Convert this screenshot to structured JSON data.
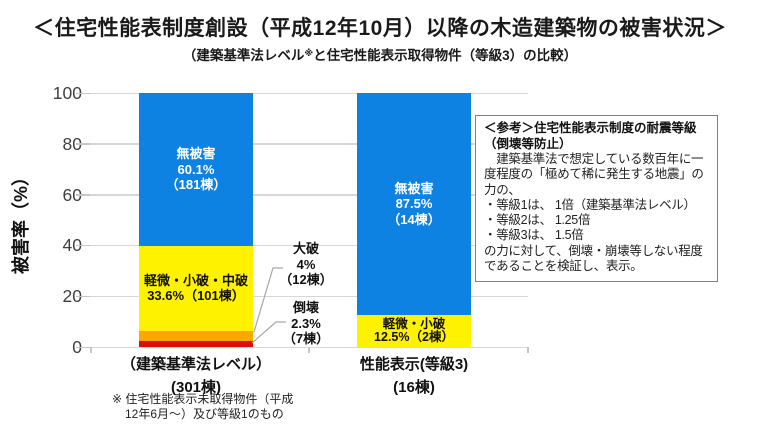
{
  "title": "＜住宅性能表制度創設（平成12年10月）以降の木造建築物の被害状況＞",
  "subtitle": {
    "pre": "（建築基準法レベル",
    "sup": "※",
    "post": "と住宅性能表示取得物件（等級3）の比較）"
  },
  "footnote": {
    "line1": "※ 住宅性能表示未取得物件（平成",
    "line2": "12年6月～）及び等級1のもの"
  },
  "reference_box": {
    "title_line1": "＜参考＞住宅性能表示制度の耐震等級",
    "title_line2": "（倒壊等防止）",
    "body": "　建築基準法で想定している数百年に一度程度の「極めて稀に発生する地震」の力の、\n・等級1は、 1倍（建築基準法レベル）\n・等級2は、 1.25倍\n・等級3は、 1.5倍\nの力に対して、倒壊・崩壊等しない程度であることを検証し、表示。"
  },
  "chart_data": {
    "type": "bar",
    "stacked": true,
    "ylabel": "被害率（%）",
    "ylim": [
      0,
      100
    ],
    "yticks": [
      0,
      20,
      40,
      60,
      80,
      100
    ],
    "grid": true,
    "legend": "none",
    "colors": {
      "no_damage": "#0d82e3",
      "minor": "#fff200",
      "major": "#ffa600",
      "collapse": "#e00c0c",
      "gridline": "#d7d7d7"
    },
    "note": "segments listed top to bottom",
    "bars": [
      {
        "category": "（建築基準法レベル）",
        "category_sub": "(301棟)",
        "total_count": 301,
        "segments": [
          {
            "name": "無被害",
            "pct": 60.1,
            "count": 181,
            "label_lines": [
              "無被害",
              "60.1%",
              "（181棟）"
            ],
            "color_key": "no_damage"
          },
          {
            "name": "軽微・小破・中破",
            "pct": 33.6,
            "count": 101,
            "label_lines": [
              "軽微・小破・中破",
              "33.6%（101棟）"
            ],
            "color_key": "minor"
          },
          {
            "name": "大破",
            "pct": 4,
            "count": 12,
            "label_lines": [
              "大破",
              "4%",
              "（12棟）"
            ],
            "color_key": "major"
          },
          {
            "name": "倒壊",
            "pct": 2.3,
            "count": 7,
            "label_lines": [
              "倒壊",
              "2.3%",
              "（7棟）"
            ],
            "color_key": "collapse"
          }
        ]
      },
      {
        "category": "性能表示(等級3)",
        "category_sub": "(16棟)",
        "total_count": 16,
        "segments": [
          {
            "name": "無被害",
            "pct": 87.5,
            "count": 14,
            "label_lines": [
              "無被害",
              "87.5%",
              "（14棟）"
            ],
            "color_key": "no_damage"
          },
          {
            "name": "軽微・小破",
            "pct": 12.5,
            "count": 2,
            "label_lines": [
              "軽微・小破",
              "12.5%（2棟）"
            ],
            "color_key": "minor"
          }
        ]
      }
    ]
  }
}
